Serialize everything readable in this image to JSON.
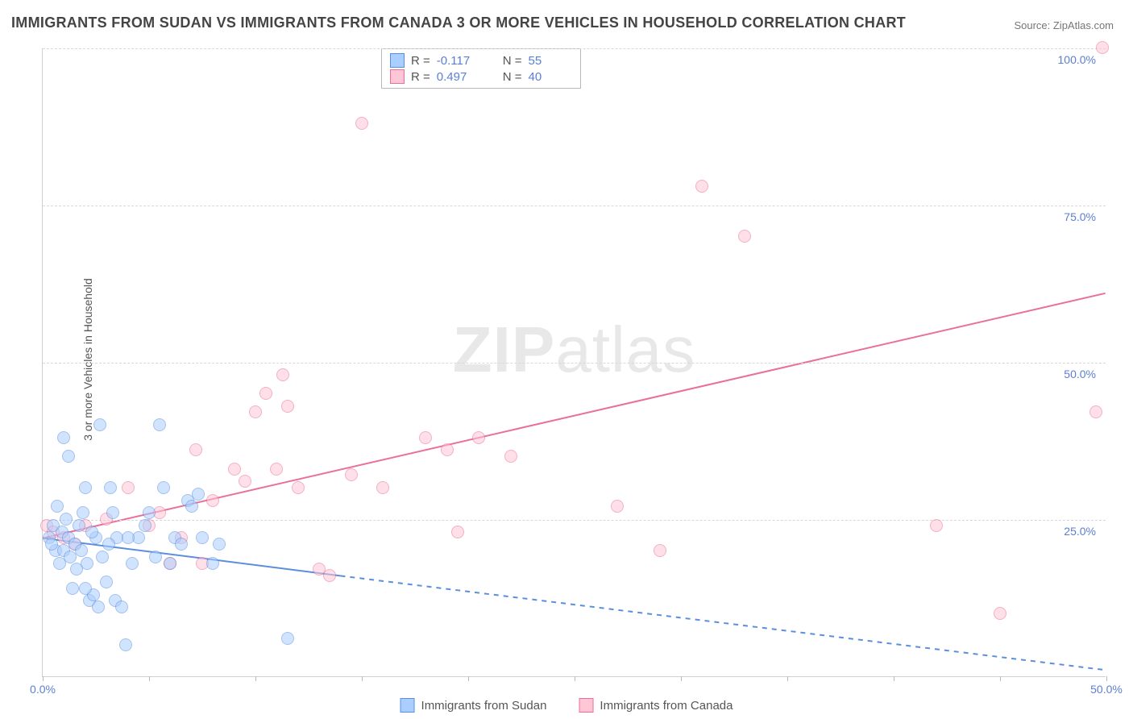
{
  "title": "IMMIGRANTS FROM SUDAN VS IMMIGRANTS FROM CANADA 3 OR MORE VEHICLES IN HOUSEHOLD CORRELATION CHART",
  "source": "Source: ZipAtlas.com",
  "y_axis_label": "3 or more Vehicles in Household",
  "watermark_a": "ZIP",
  "watermark_b": "atlas",
  "chart": {
    "type": "scatter",
    "xlim": [
      0,
      50
    ],
    "ylim": [
      0,
      100
    ],
    "x_tick_step": 5,
    "y_tick_step": 25,
    "x_tick_labels": {
      "0": "0.0%",
      "50": "50.0%"
    },
    "y_tick_labels": {
      "25": "25.0%",
      "50": "50.0%",
      "75": "75.0%",
      "100": "100.0%"
    },
    "background_color": "#ffffff",
    "grid_color": "#d8d8d8",
    "axis_color": "#d0d0d0",
    "tick_label_color": "#5b7fd1",
    "axis_label_color": "#555555",
    "marker_radius": 8,
    "marker_stroke_width": 1.5,
    "marker_fill_opacity": 0.35,
    "trend_stroke_width": 2
  },
  "series": {
    "sudan": {
      "label": "Immigrants from Sudan",
      "color_fill": "#aaceff",
      "color_stroke": "#5b8fdc",
      "R": "-0.117",
      "N": "55",
      "trend": {
        "x1": 0,
        "y1": 22,
        "x2": 14,
        "y2": 16,
        "x2_ext": 50,
        "y2_ext": 1
      },
      "points": [
        [
          0.3,
          22
        ],
        [
          0.5,
          24
        ],
        [
          0.6,
          20
        ],
        [
          0.7,
          27
        ],
        [
          0.8,
          18
        ],
        [
          0.9,
          23
        ],
        [
          1.0,
          20
        ],
        [
          1.1,
          25
        ],
        [
          1.2,
          22
        ],
        [
          1.3,
          19
        ],
        [
          1.4,
          14
        ],
        [
          1.5,
          21
        ],
        [
          1.6,
          17
        ],
        [
          1.7,
          24
        ],
        [
          1.8,
          20
        ],
        [
          1.9,
          26
        ],
        [
          2.0,
          30
        ],
        [
          2.1,
          18
        ],
        [
          2.2,
          12
        ],
        [
          2.4,
          13
        ],
        [
          2.5,
          22
        ],
        [
          2.7,
          40
        ],
        [
          2.8,
          19
        ],
        [
          3.0,
          15
        ],
        [
          3.2,
          30
        ],
        [
          3.4,
          12
        ],
        [
          3.5,
          22
        ],
        [
          3.7,
          11
        ],
        [
          3.9,
          5
        ],
        [
          4.2,
          18
        ],
        [
          4.5,
          22
        ],
        [
          4.8,
          24
        ],
        [
          5.0,
          26
        ],
        [
          5.3,
          19
        ],
        [
          5.5,
          40
        ],
        [
          5.7,
          30
        ],
        [
          6.0,
          18
        ],
        [
          6.2,
          22
        ],
        [
          6.5,
          21
        ],
        [
          6.8,
          28
        ],
        [
          7.0,
          27
        ],
        [
          7.3,
          29
        ],
        [
          7.5,
          22
        ],
        [
          8.0,
          18
        ],
        [
          8.3,
          21
        ],
        [
          4.0,
          22
        ],
        [
          2.3,
          23
        ],
        [
          3.1,
          21
        ],
        [
          1.0,
          38
        ],
        [
          1.2,
          35
        ],
        [
          2.0,
          14
        ],
        [
          2.6,
          11
        ],
        [
          3.3,
          26
        ],
        [
          11.5,
          6
        ],
        [
          0.4,
          21
        ]
      ]
    },
    "canada": {
      "label": "Immigrants from Canada",
      "color_fill": "#ffc6d6",
      "color_stroke": "#e97099",
      "R": "0.497",
      "N": "40",
      "trend": {
        "x1": 0,
        "y1": 22,
        "x2": 50,
        "y2": 61
      },
      "points": [
        [
          0.2,
          24
        ],
        [
          0.5,
          23
        ],
        [
          1.0,
          22
        ],
        [
          1.5,
          21
        ],
        [
          2.0,
          24
        ],
        [
          3.0,
          25
        ],
        [
          4.0,
          30
        ],
        [
          5.0,
          24
        ],
        [
          5.5,
          26
        ],
        [
          6.5,
          22
        ],
        [
          7.2,
          36
        ],
        [
          7.5,
          18
        ],
        [
          8.0,
          28
        ],
        [
          9.0,
          33
        ],
        [
          9.5,
          31
        ],
        [
          10.0,
          42
        ],
        [
          10.5,
          45
        ],
        [
          11.0,
          33
        ],
        [
          11.3,
          48
        ],
        [
          11.5,
          43
        ],
        [
          12.0,
          30
        ],
        [
          13.0,
          17
        ],
        [
          13.5,
          16
        ],
        [
          14.5,
          32
        ],
        [
          15.0,
          88
        ],
        [
          16.0,
          30
        ],
        [
          18.0,
          38
        ],
        [
          19.0,
          36
        ],
        [
          19.5,
          23
        ],
        [
          20.5,
          38
        ],
        [
          22.0,
          35
        ],
        [
          27.0,
          27
        ],
        [
          29.0,
          20
        ],
        [
          31.0,
          78
        ],
        [
          33.0,
          70
        ],
        [
          42.0,
          24
        ],
        [
          45.0,
          10
        ],
        [
          49.8,
          100
        ],
        [
          49.5,
          42
        ],
        [
          6.0,
          18
        ]
      ]
    }
  },
  "stats_legend": {
    "r_label": "R =",
    "n_label": "N ="
  }
}
